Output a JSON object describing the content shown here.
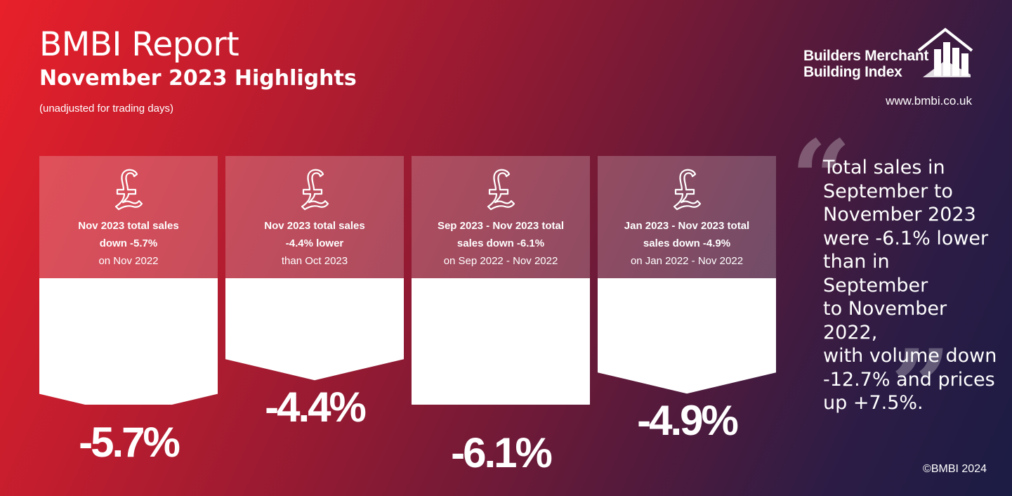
{
  "header": {
    "title": "BMBI Report",
    "subtitle": "November 2023 Highlights",
    "note": "(unadjusted for trading days)"
  },
  "logo": {
    "line1": "Builders Merchant",
    "line2": "Building Index",
    "url": "www.bmbi.co.uk"
  },
  "cards": [
    {
      "line1": "Nov 2023 total sales",
      "line2": "down -5.7%",
      "line3": "on Nov 2022",
      "value_label": "-5.7%"
    },
    {
      "line1": "Nov 2023 total sales",
      "line2": "-4.4% lower",
      "line3": "than Oct 2023",
      "value_label": "-4.4%"
    },
    {
      "line1": "Sep 2023 - Nov 2023 total",
      "line2": "sales down -6.1%",
      "line3": "on Sep 2022 - Nov 2022",
      "value_label": "-6.1%"
    },
    {
      "line1": "Jan 2023 - Nov 2023 total",
      "line2": "sales down -4.9%",
      "line3": "on Jan 2022 - Nov 2022",
      "value_label": "-4.9%"
    }
  ],
  "chart_data": {
    "type": "bar",
    "categories": [
      "Nov 2023 vs Nov 2022",
      "Nov 2023 vs Oct 2023",
      "Sep-Nov 2023 vs Sep-Nov 2022",
      "Jan-Nov 2023 vs Jan-Nov 2022"
    ],
    "values": [
      -5.7,
      -4.4,
      -6.1,
      -4.9
    ],
    "unit": "%"
  },
  "quote": {
    "lines": [
      "Total sales in",
      "September to",
      "November 2023",
      "were -6.1% lower",
      "than in September",
      "to November 2022,",
      "with volume down",
      "-12.7% and prices",
      "up +7.5%."
    ],
    "open_mark": "“",
    "close_mark": "”"
  },
  "footer": {
    "copyright": "©BMBI 2024"
  },
  "colors": {
    "gradient_start": "#e8202a",
    "gradient_end": "#1b1c44",
    "card_panel": "rgba(255,255,255,0.22)",
    "arrow_fill": "#ffffff"
  },
  "icons": {
    "card_icon": "pound-icon",
    "logo_icon": "house-bars-icon"
  }
}
